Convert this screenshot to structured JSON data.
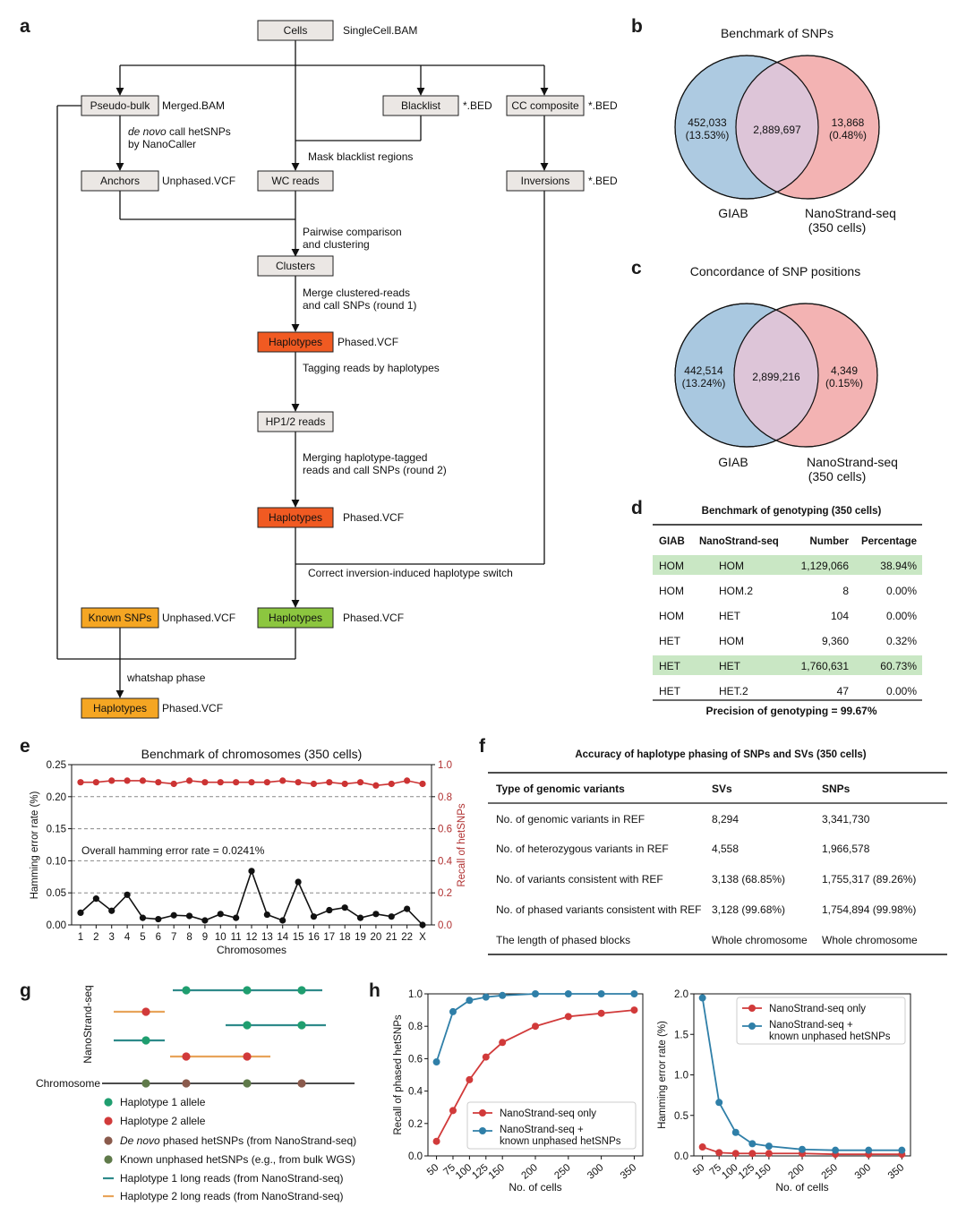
{
  "panel_letters": {
    "a": "a",
    "b": "b",
    "c": "c",
    "d": "d",
    "e": "e",
    "f": "f",
    "g": "g",
    "h": "h"
  },
  "flowchart": {
    "cells": "Cells",
    "cells_file": "SingleCell.BAM",
    "pseudobulk": "Pseudo-bulk",
    "pseudobulk_file": "Merged.BAM",
    "blacklist": "Blacklist",
    "blacklist_file": "*.BED",
    "cc_composite": "CC composite",
    "cc_file": "*.BED",
    "denovo_italic": "de novo",
    "denovo_rest": " call hetSNPs",
    "by_nanocaller": "by NanoCaller",
    "anchors": "Anchors",
    "anchors_file": "Unphased.VCF",
    "mask": "Mask blacklist regions",
    "wc_reads": "WC reads",
    "inversions": "Inversions",
    "inversions_file": "*.BED",
    "pairwise1": "Pairwise comparison",
    "pairwise2": "and clustering",
    "clusters": "Clusters",
    "merge1": "Merge clustered-reads",
    "merge2": "and call SNPs (round 1)",
    "haplotypes1": "Haplotypes",
    "phased1": "Phased.VCF",
    "tagging": "Tagging reads by haplotypes",
    "hp12": "HP1/2 reads",
    "mergeh1": "Merging haplotype-tagged",
    "mergeh2": "reads and call SNPs (round 2)",
    "haplotypes2": "Haplotypes",
    "phased2": "Phased.VCF",
    "correct": "Correct inversion-induced haplotype switch",
    "known": "Known SNPs",
    "known_file": "Unphased.VCF",
    "haplotypes3": "Haplotypes",
    "phased3": "Phased.VCF",
    "whatshap": "whatshap phase",
    "haplotypes4": "Haplotypes",
    "phased4": "Phased.VCF",
    "colors": {
      "box": "#ebe7e4",
      "orange": "#f05a22",
      "yellow": "#f5a623",
      "green": "#8cc63f"
    }
  },
  "venn_b": {
    "title": "Benchmark of SNPs",
    "left_count": "452,033",
    "left_pct": "(13.53%)",
    "center": "2,889,697",
    "right_count": "13,868",
    "right_pct": "(0.48%)",
    "left_label": "GIAB",
    "right_label1": "NanoStrand-seq",
    "right_label2": "(350 cells)"
  },
  "venn_c": {
    "title": "Concordance of SNP positions",
    "left_count": "442,514",
    "left_pct": "(13.24%)",
    "center": "2,899,216",
    "right_count": "4,349",
    "right_pct": "(0.15%)",
    "left_label": "GIAB",
    "right_label1": "NanoStrand-seq",
    "right_label2": "(350 cells)"
  },
  "table_d": {
    "title": "Benchmark of genotyping (350 cells)",
    "headers": [
      "GIAB",
      "NanoStrand-seq",
      "Number",
      "Percentage"
    ],
    "rows": [
      [
        "HOM",
        "HOM",
        "1,129,066",
        "38.94%"
      ],
      [
        "HOM",
        "HOM.2",
        "8",
        "0.00%"
      ],
      [
        "HOM",
        "HET",
        "104",
        "0.00%"
      ],
      [
        "HET",
        "HOM",
        "9,360",
        "0.32%"
      ],
      [
        "HET",
        "HET",
        "1,760,631",
        "60.73%"
      ],
      [
        "HET",
        "HET.2",
        "47",
        "0.00%"
      ]
    ],
    "highlight_color": "#c9e7c4",
    "footer": "Precision of genotyping = 99.67%"
  },
  "table_f": {
    "title": "Accuracy of haplotype phasing of SNPs and SVs (350 cells)",
    "headers": [
      "Type of genomic variants",
      "SVs",
      "SNPs"
    ],
    "rows": [
      [
        "No. of genomic variants in REF",
        "8,294",
        "3,341,730"
      ],
      [
        "No. of heterozygous variants in REF",
        "4,558",
        "1,966,578"
      ],
      [
        "No. of variants consistent with REF",
        "3,138 (68.85%)",
        "1,755,317 (89.26%)"
      ],
      [
        "No. of phased variants consistent with REF",
        "3,128 (99.68%)",
        "1,754,894 (99.98%)"
      ],
      [
        "The length of phased blocks",
        "Whole chromosome",
        "Whole chromosome"
      ]
    ]
  },
  "panel_g": {
    "side_label": "NanoStrand-seq",
    "chromosome_label": "Chromosome",
    "legend": [
      {
        "label_pre": "",
        "label_italic": "",
        "label": "Haplotype 1 allele",
        "kind": "dot",
        "color": "#1f9e6f"
      },
      {
        "label_pre": "",
        "label_italic": "",
        "label": "Haplotype 2 allele",
        "kind": "dot",
        "color": "#d13a3a"
      },
      {
        "label_pre": "",
        "label_italic": "De novo",
        "label": " phased hetSNPs (from NanoStrand-seq)",
        "kind": "dot",
        "color": "#8a5a4c"
      },
      {
        "label_pre": "",
        "label_italic": "",
        "label": "Known unphased hetSNPs (e.g., from bulk WGS)",
        "kind": "dot",
        "color": "#5f7a4a"
      },
      {
        "label_pre": "",
        "label_italic": "",
        "label": "Haplotype 1 long reads (from NanoStrand-seq)",
        "kind": "line",
        "color": "#2e8a8a"
      },
      {
        "label_pre": "",
        "label_italic": "",
        "label": "Haplotype 2 long reads (from NanoStrand-seq)",
        "kind": "line",
        "color": "#e8a45a"
      }
    ]
  },
  "chart_data": [
    {
      "type": "line",
      "panel": "e",
      "title": "Benchmark of chromosomes (350 cells)",
      "xlabel": "Chromosomes",
      "ylabel": "Hamming error rate (%)",
      "ylabel_right": "Recall of hetSNPs",
      "categories": [
        "1",
        "2",
        "3",
        "4",
        "5",
        "6",
        "7",
        "8",
        "9",
        "10",
        "11",
        "12",
        "13",
        "14",
        "15",
        "16",
        "17",
        "18",
        "19",
        "20",
        "21",
        "22",
        "X"
      ],
      "ylim": [
        0,
        0.25
      ],
      "ylim_right": [
        0,
        1.0
      ],
      "yticks": [
        "0.00",
        "0.05",
        "0.10",
        "0.15",
        "0.20",
        "0.25"
      ],
      "yticks_right": [
        "0.0",
        "0.2",
        "0.4",
        "0.6",
        "0.8",
        "1.0"
      ],
      "annotation": "Overall hamming error rate = 0.0241%",
      "grid": "dashed horizontal",
      "series": [
        {
          "axis": "left",
          "color": "#111111",
          "values": [
            0.019,
            0.041,
            0.022,
            0.047,
            0.011,
            0.009,
            0.015,
            0.014,
            0.007,
            0.017,
            0.011,
            0.084,
            0.016,
            0.007,
            0.067,
            0.013,
            0.023,
            0.027,
            0.011,
            0.017,
            0.013,
            0.025,
            0.0
          ]
        },
        {
          "axis": "right",
          "color": "#cc3333",
          "values": [
            0.89,
            0.89,
            0.9,
            0.9,
            0.9,
            0.89,
            0.88,
            0.9,
            0.89,
            0.89,
            0.89,
            0.89,
            0.89,
            0.9,
            0.89,
            0.88,
            0.89,
            0.88,
            0.89,
            0.87,
            0.88,
            0.9,
            0.88
          ]
        }
      ]
    },
    {
      "type": "line",
      "panel": "h-left",
      "xlabel": "No. of cells",
      "ylabel": "Recall of phased hetSNPs",
      "x": [
        50,
        75,
        100,
        125,
        150,
        200,
        250,
        300,
        350
      ],
      "ylim": [
        0,
        1.0
      ],
      "yticks": [
        "0.0",
        "0.2",
        "0.4",
        "0.6",
        "0.8",
        "1.0"
      ],
      "legend": "bottom-right",
      "series": [
        {
          "name": "NanoStrand-seq only",
          "color": "#d13a3a",
          "values": [
            0.09,
            0.28,
            0.47,
            0.61,
            0.7,
            0.8,
            0.86,
            0.88,
            0.9
          ]
        },
        {
          "name": "NanoStrand-seq + known unphased hetSNPs",
          "color": "#2f7fa8",
          "values": [
            0.58,
            0.89,
            0.96,
            0.98,
            0.99,
            1.0,
            1.0,
            1.0,
            1.0
          ]
        }
      ]
    },
    {
      "type": "line",
      "panel": "h-right",
      "xlabel": "No. of cells",
      "ylabel": "Hamming error rate (%)",
      "x": [
        50,
        75,
        100,
        125,
        150,
        200,
        250,
        300,
        350
      ],
      "ylim": [
        0,
        2.0
      ],
      "yticks": [
        "0.0",
        "0.5",
        "1.0",
        "1.5",
        "2.0"
      ],
      "legend": "top-right",
      "series": [
        {
          "name": "NanoStrand-seq only",
          "color": "#d13a3a",
          "values": [
            0.11,
            0.04,
            0.03,
            0.03,
            0.03,
            0.03,
            0.02,
            0.02,
            0.02
          ]
        },
        {
          "name": "NanoStrand-seq + known unphased hetSNPs",
          "color": "#2f7fa8",
          "values": [
            1.95,
            0.66,
            0.29,
            0.15,
            0.12,
            0.08,
            0.07,
            0.07,
            0.07
          ]
        }
      ]
    }
  ]
}
